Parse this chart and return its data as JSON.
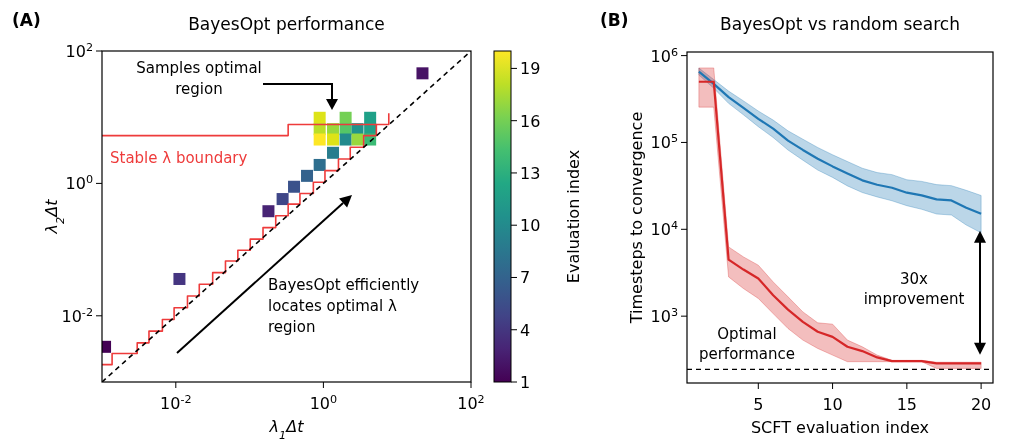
{
  "chart_data": [
    {
      "type": "scatter",
      "title": "BayesOpt performance",
      "xlabel": "λ$_{1}$Δt",
      "ylabel": "λ$_{2}$Δt",
      "clabel": "Evaluation index",
      "clim": [
        1,
        20
      ],
      "cticks": [
        1,
        4,
        7,
        10,
        13,
        16,
        19
      ],
      "log": "xy",
      "xlim": [
        0.001,
        100
      ],
      "ylim": [
        0.001,
        100
      ],
      "xticks": [
        {
          "value": 0.01,
          "label": "10$^{-2}$"
        },
        {
          "value": 1,
          "label": "10$^{0}$"
        },
        {
          "value": 100,
          "label": "10$^{2}$"
        }
      ],
      "yticks": [
        {
          "value": 0.01,
          "label": "10$^{-2}$"
        },
        {
          "value": 1,
          "label": "10$^{0}$"
        },
        {
          "value": 100,
          "label": "10$^{2}$"
        }
      ],
      "series": [
        {
          "marker": "square",
          "x": [
            0.0011,
            0.0112,
            0.18,
            0.28,
            0.4,
            0.6,
            0.89,
            1.35,
            0.89,
            2.0,
            4.3,
            0.89,
            1.35,
            2.0,
            2.9,
            4.3,
            0.89,
            1.35,
            2.0,
            2.9,
            4.3,
            22
          ],
          "values": [
            0.0034,
            0.036,
            0.38,
            0.58,
            0.89,
            1.3,
            1.9,
            2.9,
            9.8,
            9.8,
            9.8,
            6.6,
            6.6,
            6.6,
            6.6,
            6.6,
            4.6,
            4.6,
            4.6,
            4.6,
            4.6,
            46
          ],
          "colors": [
            "#440154",
            "#453581",
            "#482475",
            "#3f4788",
            "#3a528b",
            "#33628d",
            "#2e6e8e",
            "#287d8e",
            "#dde318",
            "#74d055",
            "#1fa188",
            "#bade28",
            "#98d83e",
            "#55c667",
            "#20938c",
            "#1fa188",
            "#fde725",
            "#dde318",
            "#238a8d",
            "#98d83e",
            "#3bbb75",
            "#471365"
          ]
        },
        {
          "type": "step",
          "name": "Stable λ boundary",
          "color": "#ee3b3b",
          "x": [
            0.001,
            0.333,
            5.22
          ],
          "values": [
            5.27,
            7.74,
            7.74
          ]
        },
        {
          "type": "step",
          "color": "#ee3b3b",
          "x": [
            0.001,
            0.00137,
            0.003,
            0.00433,
            0.00658,
            0.00948,
            0.0144,
            0.0208,
            0.0316,
            0.0471,
            0.0693,
            0.102,
            0.152,
            0.226,
            0.333,
            0.481,
            0.731,
            1.05,
            1.6,
            2.31,
            3.51,
            5.22,
            7.69
          ],
          "values": [
            0.00183,
            0.00269,
            0.0039,
            0.00586,
            0.00879,
            0.0132,
            0.0199,
            0.0299,
            0.0449,
            0.0673,
            0.0977,
            0.144,
            0.215,
            0.324,
            0.486,
            0.705,
            1.04,
            1.56,
            2.34,
            3.51,
            5.27,
            7.74,
            11.5
          ]
        },
        {
          "type": "line",
          "color": "#000000",
          "line_style": "dashed",
          "x": [
            0.001,
            100
          ],
          "values": [
            0.001,
            100
          ]
        }
      ],
      "annotations": [
        "(A)",
        "Samples optimal\nregion",
        "BayesOpt efficiently\nlocates optimal λ\nregion"
      ]
    },
    {
      "type": "line",
      "title": "BayesOpt vs random search",
      "xlabel": "SCFT evaluation index",
      "ylabel": "Timesteps to convergence",
      "log": "y",
      "xlim": [
        0.2,
        20.8
      ],
      "ylim": [
        170,
        1100000
      ],
      "xticks": [
        5,
        10,
        15,
        20
      ],
      "yticks": [
        {
          "value": 1000,
          "label": "10$^{3}$"
        },
        {
          "value": 10000,
          "label": "10$^{4}$"
        },
        {
          "value": 100000,
          "label": "10$^{5}$"
        },
        {
          "value": 1000000,
          "label": "10$^{6}$"
        }
      ],
      "x": [
        1,
        2,
        3,
        4,
        5,
        6,
        7,
        8,
        9,
        10,
        11,
        12,
        13,
        14,
        15,
        16,
        17,
        18,
        19,
        20
      ],
      "series": [
        {
          "color": "#1f77b4",
          "values": [
            655000,
            472000,
            332000,
            250000,
            187000,
            144000,
            105000,
            82000,
            65000,
            53000,
            44000,
            36600,
            32600,
            30100,
            26400,
            24600,
            22100,
            21500,
            17700,
            15100
          ],
          "upper": [
            718000,
            530000,
            390000,
            301000,
            230000,
            181000,
            136000,
            109000,
            87500,
            72100,
            60300,
            50500,
            45000,
            42600,
            37200,
            35600,
            32700,
            31800,
            28100,
            24500
          ],
          "lower": [
            597000,
            421000,
            282000,
            208000,
            152000,
            114000,
            81800,
            62500,
            48100,
            39600,
            31600,
            26500,
            23600,
            21300,
            18700,
            17000,
            15000,
            14600,
            11200,
            9120
          ]
        },
        {
          "color": "#d62728",
          "values": [
            500000,
            500000,
            4480,
            3440,
            2710,
            1740,
            1190,
            861,
            661,
            578,
            444,
            396,
            335,
            304,
            304,
            304,
            286,
            286,
            286,
            286
          ],
          "upper": [
            721000,
            721000,
            6270,
            4810,
            3860,
            2480,
            1670,
            1120,
            838,
            809,
            530,
            444,
            356,
            310,
            310,
            310,
            295,
            295,
            295,
            295
          ],
          "lower": [
            255000,
            255000,
            2830,
            2080,
            1600,
            1070,
            721,
            530,
            425,
            356,
            299,
            299,
            299,
            299,
            299,
            299,
            250,
            250,
            250,
            250
          ]
        }
      ],
      "ref_lines": [
        {
          "axis": "y",
          "value": 244,
          "label": "Optimal\nperformance",
          "color": "#000000",
          "line_style": "dashed"
        }
      ],
      "annotations": [
        "(B)",
        "30x\nimprovement"
      ]
    }
  ]
}
